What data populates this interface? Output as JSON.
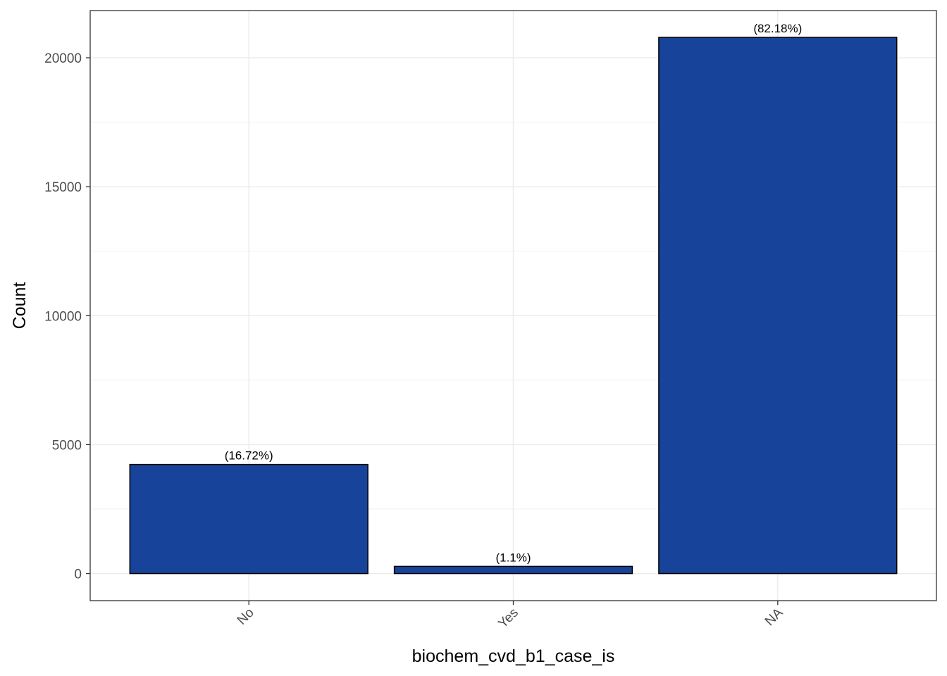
{
  "chart_data": {
    "type": "bar",
    "categories": [
      "No",
      "Yes",
      "NA"
    ],
    "values": [
      4230,
      278,
      20790
    ],
    "labels": [
      "(16.72%)",
      "(1.1%)",
      "(82.18%)"
    ],
    "xlabel": "biochem_cvd_b1_case_is",
    "ylabel": "Count",
    "ylim": [
      -1050,
      21830
    ],
    "yticks": [
      0,
      5000,
      10000,
      15000,
      20000
    ],
    "ytick_labels": [
      "0",
      "5000",
      "10000",
      "15000",
      "20000"
    ],
    "grid": true,
    "bar_color": "#17449a",
    "bar_edge_color": "#000000"
  }
}
